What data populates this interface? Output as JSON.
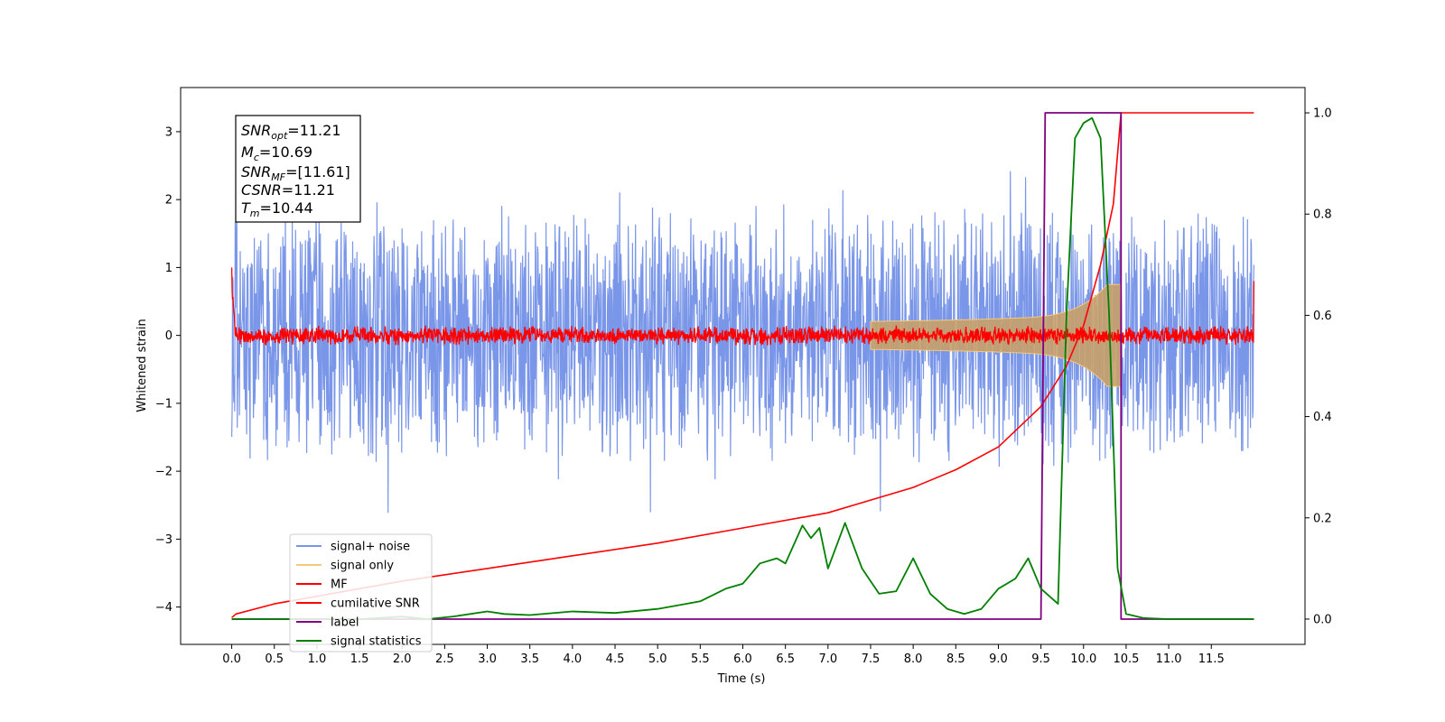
{
  "chart_data": {
    "type": "line",
    "xlabel": "Time (s)",
    "ylabel": "Whitened strain",
    "xlim": [
      -0.6,
      12.6
    ],
    "ylim": [
      -4.55,
      3.65
    ],
    "ylim_right": [
      -0.05,
      1.05
    ],
    "x_ticks": [
      "0.0",
      "0.5",
      "1.0",
      "1.5",
      "2.0",
      "2.5",
      "3.0",
      "3.5",
      "4.0",
      "4.5",
      "5.0",
      "5.5",
      "6.0",
      "6.5",
      "7.0",
      "7.5",
      "8.0",
      "8.5",
      "9.0",
      "9.5",
      "10.0",
      "10.5",
      "11.0",
      "11.5"
    ],
    "y_ticks_left": [
      "3",
      "2",
      "1",
      "0",
      "−1",
      "−2",
      "−3",
      "−4"
    ],
    "y_ticks_right": [
      "1.0",
      "0.8",
      "0.6",
      "0.4",
      "0.2",
      "0.0"
    ],
    "legend": {
      "placement": "lower-left",
      "entries": [
        {
          "label": "signal+ noise",
          "color": "#7a96e8"
        },
        {
          "label": "signal only",
          "color": "#f5c87a"
        },
        {
          "label": "MF",
          "color": "#ff0000"
        },
        {
          "label": "cumilative SNR",
          "color": "#ff0000"
        },
        {
          "label": "label",
          "color": "#800080"
        },
        {
          "label": "signal statistics",
          "color": "#008000"
        }
      ]
    },
    "annotations": {
      "snr_opt": {
        "sym": "SNR",
        "sub": "opt",
        "val": "=11.21"
      },
      "mc": {
        "sym": "M",
        "sub": "c",
        "val": "=10.69"
      },
      "snr_mf": {
        "sym": "SNR",
        "sub": "MF",
        "val": "=[11.61]"
      },
      "csnr": {
        "sym": "CSNR",
        "sub": "",
        "val": "=11.21"
      },
      "tm": {
        "sym": "T",
        "sub": "m",
        "val": "=10.44"
      }
    },
    "series": [
      {
        "name": "signal+ noise",
        "axis": "left",
        "description_envelope": [
          -2.0,
          2.0
        ],
        "range": [
          0.0,
          12.0
        ]
      },
      {
        "name": "signal only",
        "axis": "left",
        "chirp_merger_time": 10.44,
        "peak_amplitude": 0.75
      },
      {
        "name": "MF",
        "axis": "left",
        "envelope": [
          -0.15,
          0.15
        ],
        "start_value": 1.0,
        "end_value": 0.8
      },
      {
        "name": "cumilative SNR",
        "axis": "right",
        "x": [
          0.0,
          0.05,
          0.5,
          1.0,
          2.0,
          3.0,
          4.0,
          5.0,
          6.0,
          7.0,
          7.5,
          8.0,
          8.5,
          9.0,
          9.5,
          9.8,
          10.0,
          10.2,
          10.35,
          10.44,
          11.0,
          12.0
        ],
        "y": [
          0.003,
          0.01,
          0.03,
          0.045,
          0.075,
          0.1,
          0.125,
          0.15,
          0.18,
          0.21,
          0.235,
          0.26,
          0.295,
          0.34,
          0.42,
          0.5,
          0.58,
          0.7,
          0.82,
          1.0,
          1.0,
          1.0
        ]
      },
      {
        "name": "label",
        "axis": "right",
        "x": [
          0.0,
          9.5,
          9.55,
          10.44,
          10.44,
          12.0
        ],
        "y": [
          0.0,
          0.0,
          1.0,
          1.0,
          0.0,
          0.0
        ]
      },
      {
        "name": "signal statistics",
        "axis": "right",
        "x": [
          0.0,
          0.5,
          1.0,
          1.5,
          2.0,
          2.3,
          2.6,
          3.0,
          3.2,
          3.5,
          4.0,
          4.5,
          5.0,
          5.5,
          5.8,
          6.0,
          6.2,
          6.4,
          6.5,
          6.7,
          6.8,
          6.9,
          7.0,
          7.2,
          7.4,
          7.6,
          7.8,
          8.0,
          8.2,
          8.4,
          8.6,
          8.8,
          9.0,
          9.2,
          9.35,
          9.5,
          9.7,
          9.8,
          9.9,
          10.0,
          10.1,
          10.2,
          10.3,
          10.4,
          10.5,
          10.7,
          11.0,
          12.0
        ],
        "y": [
          0.0,
          0.0,
          0.0,
          0.0,
          0.005,
          0.0,
          0.005,
          0.015,
          0.01,
          0.008,
          0.015,
          0.012,
          0.02,
          0.035,
          0.06,
          0.07,
          0.11,
          0.12,
          0.11,
          0.185,
          0.16,
          0.18,
          0.1,
          0.19,
          0.1,
          0.05,
          0.055,
          0.12,
          0.05,
          0.02,
          0.01,
          0.02,
          0.06,
          0.08,
          0.12,
          0.06,
          0.03,
          0.6,
          0.95,
          0.98,
          0.99,
          0.95,
          0.6,
          0.1,
          0.01,
          0.002,
          0.0,
          0.0
        ]
      }
    ]
  }
}
